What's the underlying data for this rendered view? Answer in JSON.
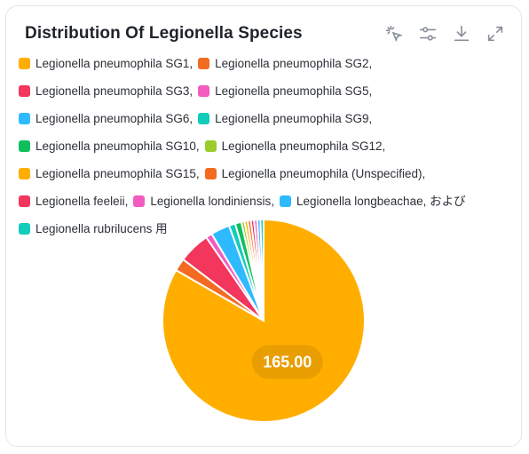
{
  "card": {
    "title": "Distribution Of Legionella Species",
    "toolbar": [
      {
        "name": "select-tool-icon",
        "icon": "cursor-click"
      },
      {
        "name": "filter-settings-icon",
        "icon": "sliders"
      },
      {
        "name": "download-icon",
        "icon": "download"
      },
      {
        "name": "expand-icon",
        "icon": "expand"
      }
    ]
  },
  "legend": [
    {
      "label": "Legionella pneumophila SG1,",
      "color": "#FFAE00"
    },
    {
      "label": "Legionella pneumophila SG2,",
      "color": "#F26B21"
    },
    {
      "label": "Legionella pneumophila SG3,",
      "color": "#F2365C"
    },
    {
      "label": "Legionella pneumophila SG5,",
      "color": "#F25CC0"
    },
    {
      "label": "Legionella pneumophila SG6,",
      "color": "#2EBAFF"
    },
    {
      "label": "Legionella pneumophila SG9,",
      "color": "#11CCBB"
    },
    {
      "label": "Legionella pneumophila SG10,",
      "color": "#0FBF5B"
    },
    {
      "label": "Legionella pneumophila SG12,",
      "color": "#9ACC2A"
    },
    {
      "label": "Legionella pneumophila SG15,",
      "color": "#FFAE00"
    },
    {
      "label": "Legionella pneumophila (Unspecified),",
      "color": "#F26B21"
    },
    {
      "label": "Legionella feeleii,",
      "color": "#F2365C"
    },
    {
      "label": "Legionella londiniensis,",
      "color": "#F25CC0"
    },
    {
      "label": "Legionella longbeachae, および",
      "color": "#2EBAFF"
    },
    {
      "label": "Legionella rubrilucens 用",
      "color": "#11CCBB"
    }
  ],
  "chart_data": {
    "type": "pie",
    "title": "Distribution Of Legionella Species",
    "slices": [
      {
        "label": "Legionella pneumophila SG1",
        "value": 165.0,
        "color": "#FFAE00"
      },
      {
        "label": "Legionella pneumophila SG2",
        "value": 4.0,
        "color": "#F26B21"
      },
      {
        "label": "Legionella pneumophila SG3",
        "value": 10.0,
        "color": "#F2365C"
      },
      {
        "label": "Legionella pneumophila SG5",
        "value": 2.0,
        "color": "#F25CC0"
      },
      {
        "label": "Legionella pneumophila SG6",
        "value": 6.0,
        "color": "#2EBAFF"
      },
      {
        "label": "Legionella pneumophila SG9",
        "value": 2.0,
        "color": "#11CCBB"
      },
      {
        "label": "Legionella pneumophila SG10",
        "value": 2.0,
        "color": "#0FBF5B"
      },
      {
        "label": "Legionella pneumophila SG12",
        "value": 1.0,
        "color": "#9ACC2A"
      },
      {
        "label": "Legionella pneumophila SG15",
        "value": 1.0,
        "color": "#FFAE00"
      },
      {
        "label": "Legionella pneumophila (Unspecified)",
        "value": 1.0,
        "color": "#F26B21"
      },
      {
        "label": "Legionella feeleii",
        "value": 1.0,
        "color": "#F2365C"
      },
      {
        "label": "Legionella londiniensis",
        "value": 1.0,
        "color": "#F25CC0"
      },
      {
        "label": "Legionella longbeachae",
        "value": 1.0,
        "color": "#2EBAFF"
      },
      {
        "label": "Legionella rubrilucens",
        "value": 1.0,
        "color": "#11CCBB"
      }
    ],
    "data_label": "165.00",
    "legend_position": "top"
  }
}
